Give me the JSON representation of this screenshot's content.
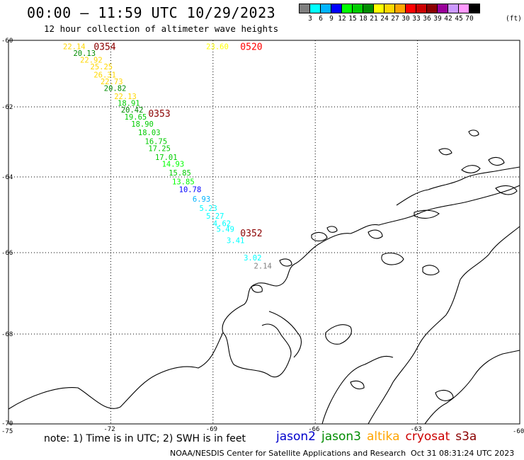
{
  "header": {
    "title": "00:00 – 11:59 UTC 10/29/2023",
    "subtitle": "12 hour collection of altimeter wave heights"
  },
  "colorbar": {
    "colors": [
      "#7f7f7f",
      "#00ffff",
      "#00b4ff",
      "#0000ff",
      "#00ff00",
      "#00cc00",
      "#008c00",
      "#ffff00",
      "#ffd700",
      "#ffa500",
      "#ff0000",
      "#cc0000",
      "#8b0000",
      "#990099",
      "#cc99ff",
      "#ff99ff",
      "#000000"
    ],
    "labels": [
      "3",
      "6",
      "9",
      "12",
      "15",
      "18",
      "21",
      "24",
      "27",
      "30",
      "33",
      "36",
      "39",
      "42",
      "45",
      "70"
    ],
    "unit": "(ft)"
  },
  "map": {
    "lat_labels": [
      {
        "text": "-60",
        "lat": -60
      },
      {
        "text": "-62",
        "lat": -62
      },
      {
        "text": "-64",
        "lat": -64
      },
      {
        "text": "-66",
        "lat": -66
      },
      {
        "text": "-68",
        "lat": -68
      },
      {
        "text": "-70",
        "lat": -70
      }
    ],
    "lon_labels": [
      {
        "text": "-75",
        "lon": -75
      },
      {
        "text": "-72",
        "lon": -72
      },
      {
        "text": "-69",
        "lon": -69
      },
      {
        "text": "-66",
        "lon": -66
      },
      {
        "text": "-63",
        "lon": -63
      },
      {
        "text": "-60",
        "lon": -60
      }
    ],
    "time_labels": [
      {
        "text": "0354",
        "color": "#8b0000",
        "lon": -72.5,
        "lat": -60.1
      },
      {
        "text": "0353",
        "color": "#8b0000",
        "lon": -70.9,
        "lat": -62.1
      },
      {
        "text": "0352",
        "color": "#8b0000",
        "lon": -68.2,
        "lat": -65.4
      },
      {
        "text": "0520",
        "color": "#ff0000",
        "lon": -68.2,
        "lat": -60.1
      }
    ],
    "observations": [
      {
        "text": "22.14",
        "color": "#ffd700",
        "lon": -73.4,
        "lat": -60.1
      },
      {
        "text": "20.13",
        "color": "#008c00",
        "lon": -73.1,
        "lat": -60.3
      },
      {
        "text": "22.92",
        "color": "#ffd700",
        "lon": -72.9,
        "lat": -60.5
      },
      {
        "text": "25.25",
        "color": "#ffd700",
        "lon": -72.6,
        "lat": -60.7
      },
      {
        "text": "26.31",
        "color": "#ffd700",
        "lon": -72.5,
        "lat": -60.95
      },
      {
        "text": "22.73",
        "color": "#ffd700",
        "lon": -72.3,
        "lat": -61.15
      },
      {
        "text": "20.82",
        "color": "#008c00",
        "lon": -72.2,
        "lat": -61.35
      },
      {
        "text": "22.13",
        "color": "#ffd700",
        "lon": -71.9,
        "lat": -61.6
      },
      {
        "text": "18.91",
        "color": "#00cc00",
        "lon": -71.8,
        "lat": -61.8
      },
      {
        "text": "20.42",
        "color": "#008c00",
        "lon": -71.7,
        "lat": -62.0
      },
      {
        "text": "19.65",
        "color": "#00cc00",
        "lon": -71.6,
        "lat": -62.2
      },
      {
        "text": "18.90",
        "color": "#00cc00",
        "lon": -71.4,
        "lat": -62.4
      },
      {
        "text": "18.03",
        "color": "#00cc00",
        "lon": -71.2,
        "lat": -62.65
      },
      {
        "text": "16.75",
        "color": "#00cc00",
        "lon": -71.0,
        "lat": -62.9
      },
      {
        "text": "17.25",
        "color": "#00cc00",
        "lon": -70.9,
        "lat": -63.1
      },
      {
        "text": "17.01",
        "color": "#00cc00",
        "lon": -70.7,
        "lat": -63.35
      },
      {
        "text": "14.93",
        "color": "#00ff00",
        "lon": -70.5,
        "lat": -63.55
      },
      {
        "text": "15.85",
        "color": "#00cc00",
        "lon": -70.3,
        "lat": -63.8
      },
      {
        "text": "13.85",
        "color": "#00ff00",
        "lon": -70.2,
        "lat": -64.05
      },
      {
        "text": "10.78",
        "color": "#0000ff",
        "lon": -70.0,
        "lat": -64.25
      },
      {
        "text": "6.93",
        "color": "#00b4ff",
        "lon": -69.6,
        "lat": -64.5
      },
      {
        "text": "5.23",
        "color": "#00ffff",
        "lon": -69.4,
        "lat": -64.75
      },
      {
        "text": "5.27",
        "color": "#00ffff",
        "lon": -69.2,
        "lat": -64.95
      },
      {
        "text": "4.62",
        "color": "#00ffff",
        "lon": -69.0,
        "lat": -65.15
      },
      {
        "text": "5.49",
        "color": "#00ffff",
        "lon": -68.9,
        "lat": -65.3
      },
      {
        "text": "3.41",
        "color": "#00ffff",
        "lon": -68.6,
        "lat": -65.6
      },
      {
        "text": "3.02",
        "color": "#00ffff",
        "lon": -68.1,
        "lat": -66.05
      },
      {
        "text": "2.14",
        "color": "#7f7f7f",
        "lon": -67.8,
        "lat": -66.25
      },
      {
        "text": "23.60",
        "color": "#ffff00",
        "lon": -69.2,
        "lat": -60.1
      }
    ]
  },
  "footer": {
    "note": "note: 1) Time is in UTC; 2) SWH is in feet",
    "satellites": [
      {
        "name": "jason2",
        "color": "#0000cc"
      },
      {
        "name": "jason3",
        "color": "#008c00"
      },
      {
        "name": "altika",
        "color": "#ffa500"
      },
      {
        "name": "cryosat",
        "color": "#cc0000"
      },
      {
        "name": "s3a",
        "color": "#8b0000"
      }
    ],
    "credit": "NOAA/NESDIS Center for Satellite Applications and Research",
    "timestamp": "Oct 31 08:31:24 UTC 2023"
  }
}
